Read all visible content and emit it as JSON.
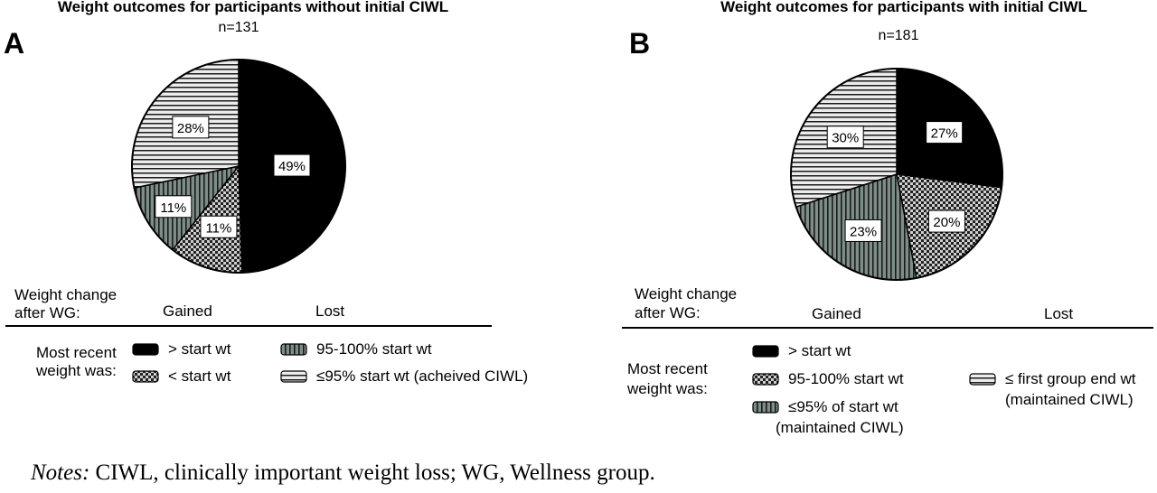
{
  "chart_data": [
    {
      "type": "pie",
      "panel": "A",
      "title": "Weight outcomes for participants without initial CIWL",
      "subtitle": "n=131",
      "slices": [
        {
          "label": "> start wt",
          "value": 49,
          "pattern": "solid"
        },
        {
          "label": "< start wt",
          "value": 11,
          "pattern": "checker"
        },
        {
          "label": "95-100% start wt",
          "value": 11,
          "pattern": "vstripe"
        },
        {
          "label": "≤95% start wt (acheived CIWL)",
          "value": 28,
          "pattern": "hstripe"
        }
      ],
      "data_labels": [
        "49%",
        "11%",
        "11%",
        "28%"
      ],
      "legend": {
        "weight_change_label": [
          "Weight change",
          "after WG:"
        ],
        "gained_label": "Gained",
        "lost_label": "Lost",
        "recent_label": [
          "Most recent",
          "weight was:"
        ],
        "items": [
          {
            "pattern": "solid",
            "lines": [
              "> start wt"
            ]
          },
          {
            "pattern": "checker",
            "lines": [
              "< start wt"
            ]
          },
          {
            "pattern": "vstripe",
            "lines": [
              "95-100% start wt"
            ]
          },
          {
            "pattern": "hstripe",
            "lines": [
              "≤95% start wt (acheived CIWL)"
            ]
          }
        ]
      }
    },
    {
      "type": "pie",
      "panel": "B",
      "title": "Weight outcomes for participants with initial CIWL",
      "subtitle": "n=181",
      "slices": [
        {
          "label": "> start wt",
          "value": 27,
          "pattern": "solid"
        },
        {
          "label": "95-100% start wt",
          "value": 20,
          "pattern": "checker"
        },
        {
          "label": "≤95% of start wt (maintained CIWL)",
          "value": 23,
          "pattern": "vstripe"
        },
        {
          "label": "≤ first group end wt (maintained CIWL)",
          "value": 30,
          "pattern": "hstripe"
        }
      ],
      "data_labels": [
        "27%",
        "20%",
        "23%",
        "30%"
      ],
      "legend": {
        "weight_change_label": [
          "Weight change",
          "after WG:"
        ],
        "gained_label": "Gained",
        "lost_label": "Lost",
        "recent_label": [
          "Most recent",
          "weight was:"
        ],
        "items": [
          {
            "pattern": "solid",
            "lines": [
              "> start wt"
            ]
          },
          {
            "pattern": "checker",
            "lines": [
              "95-100% start wt"
            ]
          },
          {
            "pattern": "vstripe",
            "lines": [
              "≤95% of start wt",
              "(maintained CIWL)"
            ]
          },
          {
            "pattern": "hstripe",
            "lines": [
              "≤ first group end wt",
              "(maintained CIWL)"
            ]
          }
        ]
      }
    }
  ],
  "colors": {
    "solid": "#000000",
    "checker_fg": "#222222",
    "checker_bg": "#cfcfcf",
    "vstripe_fg": "#1a1a1a",
    "vstripe_bg": "#7d8e88",
    "hstripe_fg": "#1a1a1a",
    "hstripe_bg": "#ececec"
  },
  "notes": {
    "prefix": "Notes:",
    "text": " CIWL, clinically important weight loss; WG, Wellness group."
  }
}
